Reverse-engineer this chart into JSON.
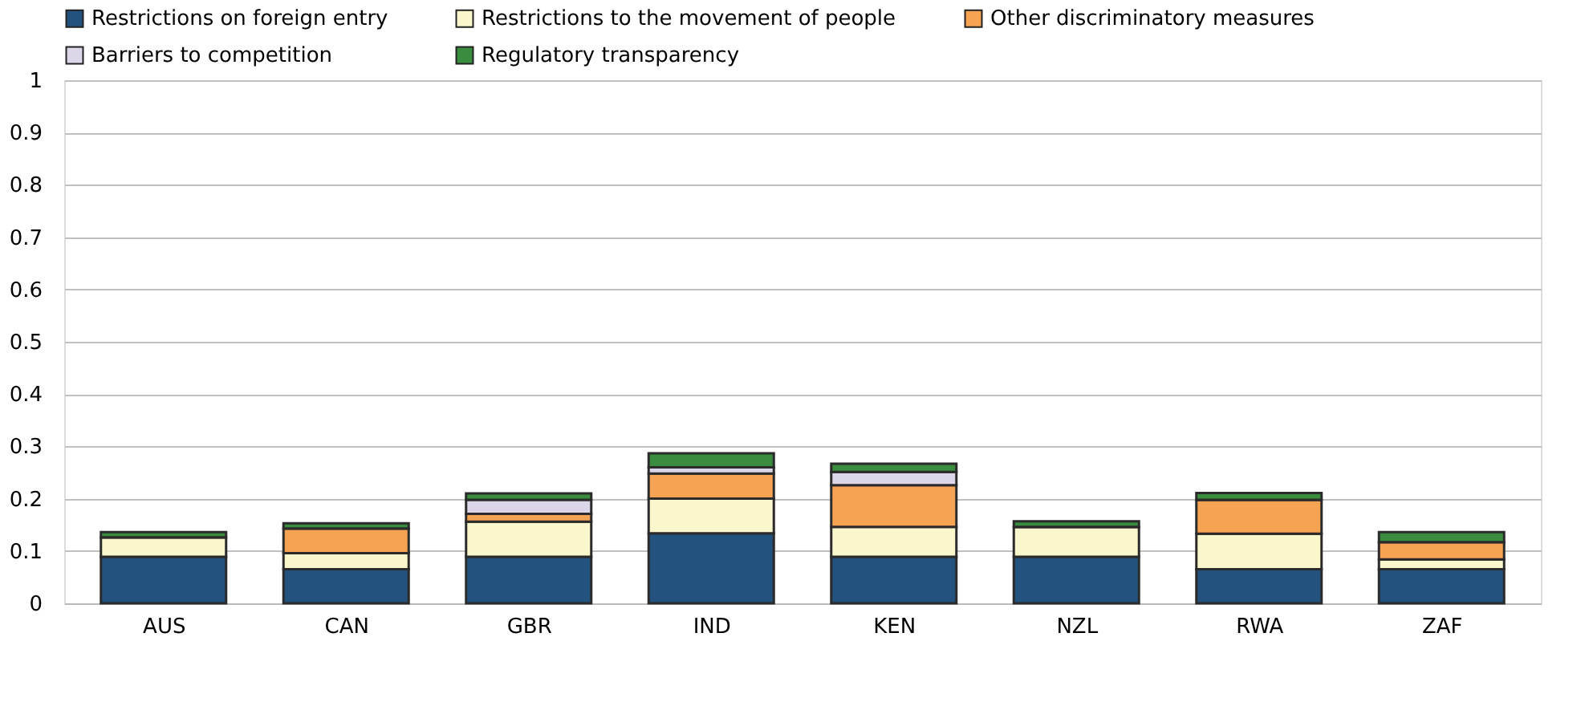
{
  "chart_data": {
    "type": "bar",
    "stacked": true,
    "categories": [
      "AUS",
      "CAN",
      "GBR",
      "IND",
      "KEN",
      "NZL",
      "RWA",
      "ZAF"
    ],
    "series": [
      {
        "name": "Restrictions on foreign entry",
        "color": "#24527f",
        "values": [
          0.089,
          0.065,
          0.089,
          0.134,
          0.089,
          0.089,
          0.065,
          0.065
        ]
      },
      {
        "name": "Restrictions to the movement of people",
        "color": "#fbf7cc",
        "values": [
          0.037,
          0.031,
          0.067,
          0.066,
          0.057,
          0.057,
          0.068,
          0.019
        ]
      },
      {
        "name": "Other discriminatory measures",
        "color": "#f7a354",
        "values": [
          0,
          0.047,
          0.015,
          0.048,
          0.08,
          0,
          0.065,
          0.033
        ]
      },
      {
        "name": "Barriers to competition",
        "color": "#ddd5e8",
        "values": [
          0,
          0,
          0.027,
          0.012,
          0.025,
          0,
          0,
          0
        ]
      },
      {
        "name": "Regulatory transparency",
        "color": "#3a8c3f",
        "values": [
          0.01,
          0.01,
          0.012,
          0.027,
          0.016,
          0.011,
          0.013,
          0.019
        ]
      }
    ],
    "ylim": [
      0,
      1
    ],
    "yticks": [
      0,
      0.1,
      0.2,
      0.3,
      0.4,
      0.5,
      0.6,
      0.7,
      0.8,
      0.9,
      1
    ],
    "grid": "y",
    "legend": "top left"
  }
}
